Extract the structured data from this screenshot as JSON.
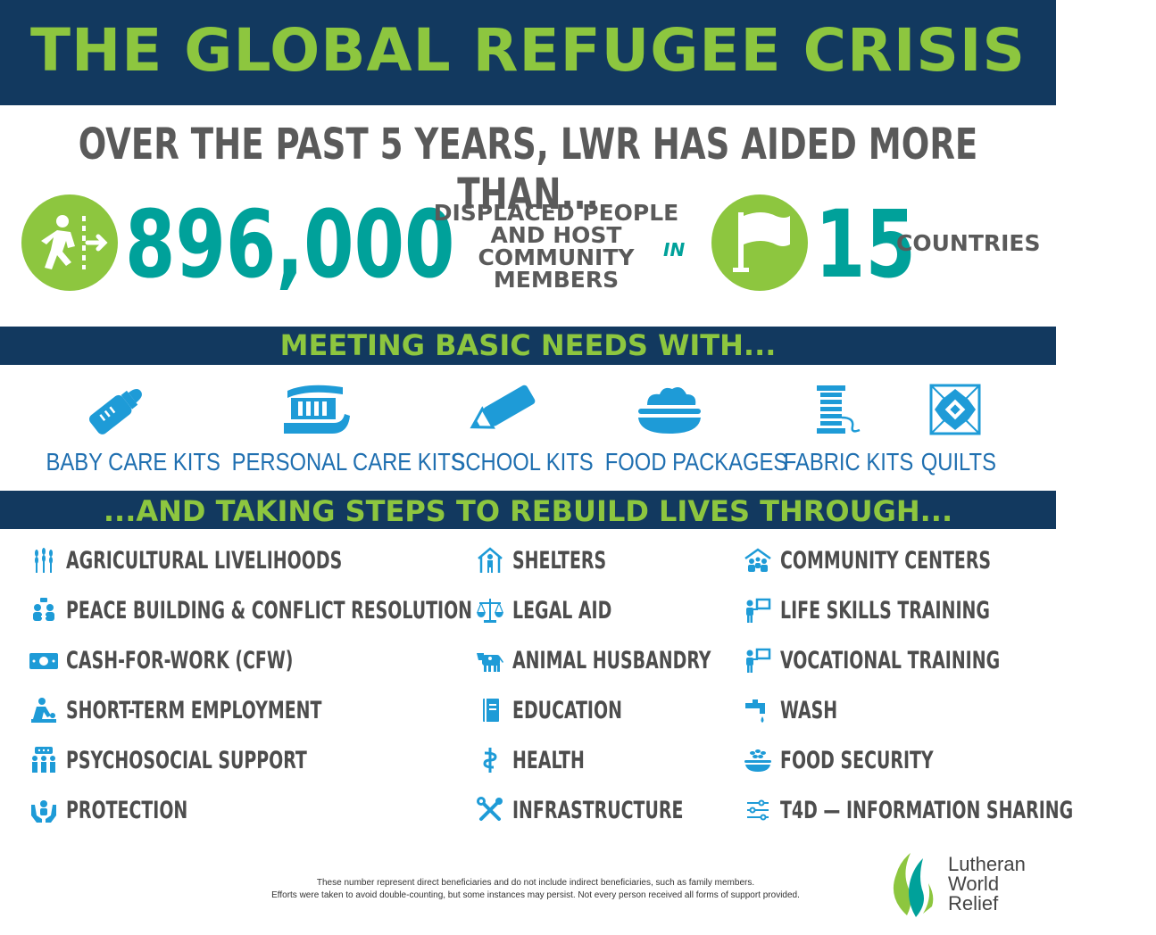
{
  "header": {
    "title": "THE GLOBAL REFUGEE CRISIS",
    "subtitle": "OVER THE PAST 5 YEARS, LWR HAS AIDED MORE THAN..."
  },
  "stats": {
    "people_number": "896,000",
    "people_label_lines": [
      "DISPLACED PEOPLE",
      "AND HOST",
      "COMMUNITY",
      "MEMBERS"
    ],
    "in_label": "IN",
    "countries_number": "15",
    "countries_label": "COUNTRIES"
  },
  "basic_needs": {
    "heading": "MEETING BASIC NEEDS WITH...",
    "items": [
      {
        "label": "BABY CARE KITS",
        "icon": "baby-bottle-icon"
      },
      {
        "label": "PERSONAL CARE KITS",
        "icon": "toothpaste-icon"
      },
      {
        "label": "SCHOOL KITS",
        "icon": "pencil-icon"
      },
      {
        "label": "FOOD PACKAGES",
        "icon": "food-bowl-icon"
      },
      {
        "label": "FABRIC KITS",
        "icon": "thread-spool-icon"
      },
      {
        "label": "QUILTS",
        "icon": "quilt-icon"
      }
    ]
  },
  "rebuild": {
    "heading": "...AND TAKING STEPS TO REBUILD LIVES THROUGH...",
    "columns": [
      [
        {
          "label": "AGRICULTURAL LIVELIHOODS",
          "icon": "wheat-icon"
        },
        {
          "label": "PEACE BUILDING & CONFLICT RESOLUTION",
          "icon": "people-dialogue-icon"
        },
        {
          "label": "CASH-FOR-WORK (CFW)",
          "icon": "cash-icon"
        },
        {
          "label": "SHORT-TERM EMPLOYMENT",
          "icon": "worker-icon"
        },
        {
          "label": "PSYCHOSOCIAL SUPPORT",
          "icon": "group-support-icon"
        },
        {
          "label": "PROTECTION",
          "icon": "hands-person-icon"
        }
      ],
      [
        {
          "label": "SHELTERS",
          "icon": "shelter-icon"
        },
        {
          "label": "LEGAL AID",
          "icon": "scales-icon"
        },
        {
          "label": "ANIMAL HUSBANDRY",
          "icon": "cow-icon"
        },
        {
          "label": "EDUCATION",
          "icon": "book-icon"
        },
        {
          "label": "HEALTH",
          "icon": "caduceus-icon"
        },
        {
          "label": "INFRASTRUCTURE",
          "icon": "tools-icon"
        }
      ],
      [
        {
          "label": "COMMUNITY CENTERS",
          "icon": "community-house-icon"
        },
        {
          "label": "LIFE SKILLS TRAINING",
          "icon": "presenter-icon"
        },
        {
          "label": "VOCATIONAL TRAINING",
          "icon": "presenter-icon"
        },
        {
          "label": "WASH",
          "icon": "water-tap-icon"
        },
        {
          "label": "FOOD SECURITY",
          "icon": "grain-bowl-icon"
        },
        {
          "label": "T4D — INFORMATION SHARING",
          "icon": "sliders-icon"
        }
      ]
    ]
  },
  "footnote": {
    "line1": "These number represent direct beneficiaries and do not include indirect beneficiaries, such as family members.",
    "line2": "Efforts were taken to avoid double-counting, but some instances may persist. Not every person received all forms of support provided."
  },
  "logo": {
    "lines": [
      "Lutheran",
      "World",
      "Relief"
    ]
  },
  "colors": {
    "navy": "#12395f",
    "green": "#8dc63f",
    "teal": "#00a19a",
    "blue": "#1e9bd7",
    "grey": "#5a5a5a"
  }
}
